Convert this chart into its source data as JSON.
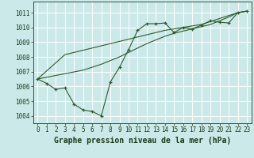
{
  "title": "Graphe pression niveau de la mer (hPa)",
  "bg_color": "#cce9e9",
  "grid_color": "#b0d4d4",
  "line_color": "#2d5a2d",
  "marker_color": "#2d5a2d",
  "x_data": [
    0,
    1,
    2,
    3,
    4,
    5,
    6,
    7,
    8,
    9,
    10,
    11,
    12,
    13,
    14,
    15,
    16,
    17,
    18,
    19,
    20,
    21,
    22,
    23
  ],
  "y_main": [
    1006.5,
    1006.2,
    1005.8,
    1005.9,
    1004.8,
    1004.4,
    1004.3,
    1004.0,
    1006.3,
    1007.3,
    1008.5,
    1009.8,
    1010.25,
    1010.25,
    1010.3,
    1009.65,
    1010.0,
    1009.9,
    1010.15,
    1010.45,
    1010.35,
    1010.3,
    1011.0,
    1011.1
  ],
  "y_line1": [
    1006.5,
    1007.05,
    1007.6,
    1008.15,
    1008.3,
    1008.45,
    1008.6,
    1008.75,
    1008.9,
    1009.05,
    1009.2,
    1009.35,
    1009.5,
    1009.65,
    1009.8,
    1009.9,
    1010.0,
    1010.1,
    1010.2,
    1010.4,
    1010.6,
    1010.8,
    1011.0,
    1011.1
  ],
  "y_line2": [
    1006.5,
    1006.62,
    1006.74,
    1006.86,
    1006.98,
    1007.1,
    1007.3,
    1007.5,
    1007.75,
    1008.0,
    1008.3,
    1008.6,
    1008.9,
    1009.15,
    1009.4,
    1009.6,
    1009.75,
    1009.9,
    1010.05,
    1010.2,
    1010.45,
    1010.7,
    1011.0,
    1011.1
  ],
  "ylim": [
    1003.5,
    1011.75
  ],
  "xlim": [
    -0.5,
    23.5
  ],
  "yticks": [
    1004,
    1005,
    1006,
    1007,
    1008,
    1009,
    1010,
    1011
  ],
  "xticks": [
    0,
    1,
    2,
    3,
    4,
    5,
    6,
    7,
    8,
    9,
    10,
    11,
    12,
    13,
    14,
    15,
    16,
    17,
    18,
    19,
    20,
    21,
    22,
    23
  ],
  "xtick_labels": [
    "0",
    "1",
    "2",
    "3",
    "4",
    "5",
    "6",
    "7",
    "8",
    "9",
    "10",
    "11",
    "12",
    "13",
    "14",
    "15",
    "16",
    "17",
    "18",
    "19",
    "20",
    "21",
    "22",
    "23"
  ],
  "title_fontsize": 7,
  "tick_fontsize": 5.5,
  "title_color": "#1a3a1a",
  "tick_color": "#1a3a1a",
  "axis_color": "#1a3a1a"
}
